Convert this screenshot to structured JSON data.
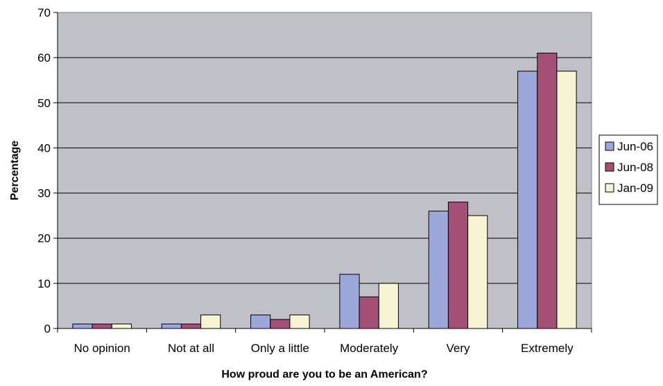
{
  "chart_data": {
    "type": "bar",
    "title": "",
    "xlabel": "How proud are you to be an American?",
    "ylabel": "Percentage",
    "ylim": [
      0,
      70
    ],
    "yticks": [
      0,
      10,
      20,
      30,
      40,
      50,
      60,
      70
    ],
    "categories": [
      "No opinion",
      "Not at all",
      "Only a little",
      "Moderately",
      "Very",
      "Extremely"
    ],
    "series": [
      {
        "name": "Jun-06",
        "color": "#9DA8DA",
        "values": [
          1,
          1,
          3,
          12,
          26,
          57
        ]
      },
      {
        "name": "Jun-08",
        "color": "#A44F75",
        "values": [
          1,
          1,
          2,
          7,
          28,
          61
        ]
      },
      {
        "name": "Jan-09",
        "color": "#F6F4D2",
        "values": [
          1,
          3,
          3,
          10,
          25,
          57
        ]
      }
    ],
    "grid": true,
    "plot_background": "#C0C0C8",
    "legend_position": "right"
  }
}
